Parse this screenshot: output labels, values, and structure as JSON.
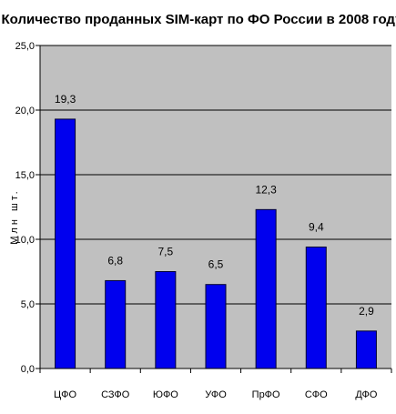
{
  "chart_data": {
    "type": "bar",
    "title": "Количество проданных SIM-карт по ФО России в 2008 году",
    "xlabel": "",
    "ylabel": "Млн шт.",
    "categories": [
      "ЦФО",
      "СЗФО",
      "ЮФО",
      "УФО",
      "ПрФО",
      "СФО",
      "ДФО"
    ],
    "values": [
      19.3,
      6.8,
      7.5,
      6.5,
      12.3,
      9.4,
      2.9
    ],
    "data_labels": [
      "19,3",
      "6,8",
      "7,5",
      "6,5",
      "12,3",
      "9,4",
      "2,9"
    ],
    "ylim": [
      0,
      25
    ],
    "yticks": [
      0,
      5,
      10,
      15,
      20,
      25
    ],
    "ytick_labels": [
      "0,0",
      "5,0",
      "10,0",
      "15,0",
      "20,0",
      "25,0"
    ],
    "grid": true,
    "legend": "none",
    "colors": {
      "bar": "#0000ee",
      "bar_edge": "#000033",
      "plot_bg": "#c0c0c0",
      "grid": "#000000"
    }
  }
}
